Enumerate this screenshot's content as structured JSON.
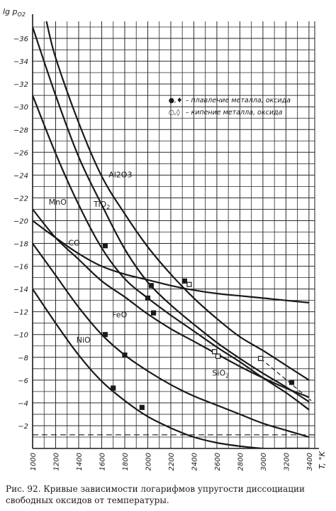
{
  "chart_data": {
    "type": "line",
    "title": "",
    "xlabel": "T, °K",
    "ylabel": "lg p_O2",
    "xlim": [
      1000,
      3450
    ],
    "ylim": [
      0,
      37.5
    ],
    "y_reversed_sign": true,
    "grid": true,
    "x_ticks": [
      1000,
      1200,
      1400,
      1600,
      1800,
      2000,
      2200,
      2400,
      2600,
      2800,
      3000,
      3200,
      3400
    ],
    "y_ticks": [
      -2,
      -4,
      -6,
      -8,
      -10,
      -12,
      -14,
      -16,
      -18,
      -20,
      -22,
      -24,
      -26,
      -28,
      -30,
      -32,
      -34,
      -36
    ],
    "series": [
      {
        "name": "Al2O3",
        "label_at": [
          1660,
          23.8
        ],
        "x": [
          1120,
          1200,
          1400,
          1600,
          1800,
          2000,
          2200,
          2400,
          2600,
          2800,
          3000,
          3200,
          3400
        ],
        "y": [
          37.5,
          34.3,
          28.6,
          23.9,
          20.6,
          17.7,
          15.3,
          13.2,
          11.4,
          9.8,
          8.6,
          7.3,
          6.0
        ]
      },
      {
        "name": "TiO2",
        "label_at": [
          1530,
          21.2
        ],
        "x": [
          1000,
          1200,
          1400,
          1600,
          1800,
          2000,
          2200,
          2400,
          2600,
          2800,
          3000,
          3200,
          3400
        ],
        "y": [
          37.0,
          31.0,
          25.6,
          21.4,
          17.5,
          14.6,
          12.6,
          10.9,
          9.3,
          7.9,
          6.6,
          5.4,
          4.1
        ]
      },
      {
        "name": "MnO",
        "label_at": [
          1140,
          21.4
        ],
        "x": [
          1000,
          1200,
          1400,
          1600,
          1800,
          2000,
          2200,
          2400,
          2600,
          2800,
          3000,
          3200,
          3400
        ],
        "y": [
          31.0,
          25.9,
          21.4,
          17.6,
          14.9,
          13.2,
          11.7,
          10.3,
          8.9,
          7.6,
          6.2,
          4.9,
          3.4
        ]
      },
      {
        "name": "CO",
        "label_at": [
          1310,
          17.8
        ],
        "x": [
          1000,
          1200,
          1400,
          1600,
          1800,
          2000,
          2200,
          2400,
          2600,
          2800,
          3000,
          3200,
          3400
        ],
        "y": [
          20.0,
          18.5,
          17.1,
          16.0,
          15.3,
          14.8,
          14.3,
          13.9,
          13.6,
          13.4,
          13.2,
          13.0,
          12.8
        ]
      },
      {
        "name": "SiO2",
        "label_at": [
          2560,
          6.4
        ],
        "x": [
          1000,
          1200,
          1400,
          1600,
          1800,
          2000,
          2200,
          2400,
          2600,
          2800,
          3000,
          3200,
          3400
        ],
        "y": [
          21.0,
          18.5,
          16.6,
          14.7,
          13.3,
          11.8,
          10.5,
          9.4,
          8.3,
          7.2,
          6.2,
          5.3,
          4.5
        ]
      },
      {
        "name": "FeO",
        "label_at": [
          1690,
          11.5
        ],
        "x": [
          1000,
          1200,
          1400,
          1600,
          1800,
          2000,
          2200,
          2400,
          2600,
          2800,
          3000,
          3200,
          3400
        ],
        "y": [
          18.0,
          15.2,
          12.4,
          10.0,
          8.2,
          6.8,
          5.6,
          4.6,
          3.8,
          3.0,
          2.2,
          1.6,
          1.0
        ]
      },
      {
        "name": "NiO",
        "label_at": [
          1380,
          9.3
        ],
        "x": [
          1000,
          1200,
          1400,
          1600,
          1800,
          2000,
          2200,
          2400,
          2600,
          2800,
          3000,
          3200,
          3400
        ],
        "y": [
          14.0,
          11.0,
          8.2,
          5.9,
          4.2,
          2.8,
          1.8,
          1.0,
          0.5,
          0.2,
          0.0,
          0.0,
          0.0
        ]
      },
      {
        "name": "",
        "dashed": true,
        "x": [
          1000,
          3450
        ],
        "y": [
          1.2,
          1.2
        ]
      }
    ],
    "markers": [
      {
        "x": 1630,
        "y": 17.8,
        "kind": "solid-square"
      },
      {
        "x": 2030,
        "y": 14.3,
        "kind": "solid-square"
      },
      {
        "x": 2000,
        "y": 13.2,
        "kind": "solid-square"
      },
      {
        "x": 2050,
        "y": 11.9,
        "kind": "solid-square"
      },
      {
        "x": 1630,
        "y": 10.0,
        "kind": "solid-square"
      },
      {
        "x": 1800,
        "y": 8.2,
        "kind": "solid-square"
      },
      {
        "x": 1700,
        "y": 5.3,
        "kind": "solid-square"
      },
      {
        "x": 1950,
        "y": 3.6,
        "kind": "solid-square"
      },
      {
        "x": 2320,
        "y": 14.7,
        "kind": "solid-square"
      },
      {
        "x": 3250,
        "y": 5.8,
        "kind": "solid-square"
      },
      {
        "x": 2360,
        "y": 14.4,
        "kind": "open-square"
      },
      {
        "x": 2580,
        "y": 8.5,
        "kind": "open-square"
      },
      {
        "x": 2610,
        "y": 8.1,
        "kind": "open-square"
      },
      {
        "x": 2980,
        "y": 7.9,
        "kind": "open-square"
      }
    ],
    "legend": {
      "placement": "top-right",
      "entries": [
        {
          "symbol": "●,♦",
          "text": "– плавление металла, оксида"
        },
        {
          "symbol": "○,◊",
          "text": "– кипение металла, оксида"
        }
      ]
    }
  },
  "caption": "Рис. 92. Кривые зависимости логарифмов упругости диссоциации свободных оксидов от температуры.",
  "style": {
    "ink": "#1a1a1a",
    "grid": "#2a2a2a",
    "paper": "#ffffff"
  }
}
